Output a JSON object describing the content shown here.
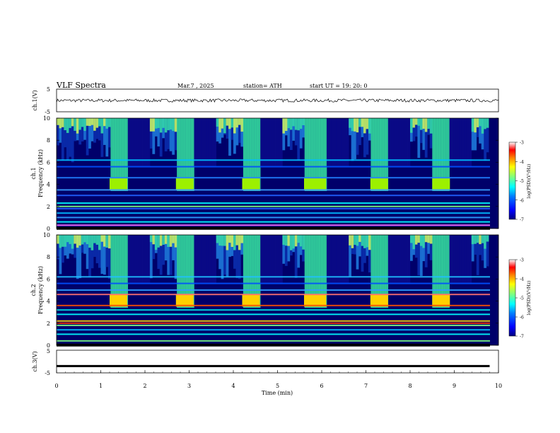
{
  "header": {
    "title": "VLF  Spectra",
    "date": "Mar.7  , 2025",
    "station": "station= ATH",
    "start": "start  UT  =   19: 20: 0"
  },
  "panels": {
    "ch1_waveform_label": "ch.1(V)",
    "ch1_spectrogram_label": "ch.1",
    "ch2_spectrogram_label": "ch.2",
    "ch3_waveform_label": "ch.3(V)",
    "frequency_label": "Frequency  (kHz)",
    "time_label": "Time  (min)",
    "colorbar_label": "log(PSD)(V²/Hz)"
  },
  "chart_data": [
    {
      "type": "line",
      "name": "ch1-waveform",
      "ylabel": "ch.1(V)",
      "ylim": [
        -5,
        5
      ],
      "y_ticks": [
        "5",
        "-5"
      ],
      "xlim": [
        0,
        10
      ],
      "baseline": 0
    },
    {
      "type": "heatmap",
      "name": "ch1-spectrogram",
      "ylabel": "Frequency  (kHz)",
      "ylim": [
        0,
        10
      ],
      "y_ticks": [
        "0",
        "2",
        "4",
        "6",
        "8",
        "10"
      ],
      "xlim": [
        0,
        10
      ],
      "bursts_min": [
        [
          1.2,
          1.6
        ],
        [
          2.7,
          3.1
        ],
        [
          4.2,
          4.6
        ],
        [
          5.6,
          6.1
        ],
        [
          7.1,
          7.5
        ],
        [
          8.5,
          8.9
        ]
      ],
      "burst_band_khz": [
        3.5,
        4.6
      ],
      "colorbar": {
        "ticks": [
          "-3",
          "-4",
          "-5",
          "-6",
          "-7"
        ],
        "range": [
          -7,
          -3
        ]
      }
    },
    {
      "type": "heatmap",
      "name": "ch2-spectrogram",
      "ylabel": "Frequency  (kHz)",
      "ylim": [
        0,
        10
      ],
      "y_ticks": [
        "0",
        "2",
        "4",
        "6",
        "8",
        "10"
      ],
      "xlim": [
        0,
        10
      ],
      "bursts_min": [
        [
          1.2,
          1.6
        ],
        [
          2.7,
          3.1
        ],
        [
          4.2,
          4.6
        ],
        [
          5.6,
          6.1
        ],
        [
          7.1,
          7.5
        ],
        [
          8.5,
          8.9
        ]
      ],
      "burst_band_khz": [
        3.5,
        4.6
      ],
      "colorbar": {
        "ticks": [
          "-3",
          "-4",
          "-5",
          "-6",
          "-7"
        ],
        "range": [
          -7,
          -3
        ]
      }
    },
    {
      "type": "line",
      "name": "ch3-waveform",
      "ylabel": "ch.3(V)",
      "ylim": [
        -5,
        5
      ],
      "y_ticks": [
        "5",
        "-5"
      ],
      "xlim": [
        0,
        10
      ],
      "x_ticks": [
        "0",
        "1",
        "2",
        "3",
        "4",
        "5",
        "6",
        "7",
        "8",
        "9",
        "10"
      ],
      "xlabel": "Time  (min)",
      "baseline": -2
    }
  ],
  "colors": {
    "frame": "#000000",
    "colormap": [
      "#00007f",
      "#0000ff",
      "#007fff",
      "#00ffff",
      "#7fff7f",
      "#ffff00",
      "#ff7f00",
      "#ff0000",
      "#ffffff"
    ]
  }
}
